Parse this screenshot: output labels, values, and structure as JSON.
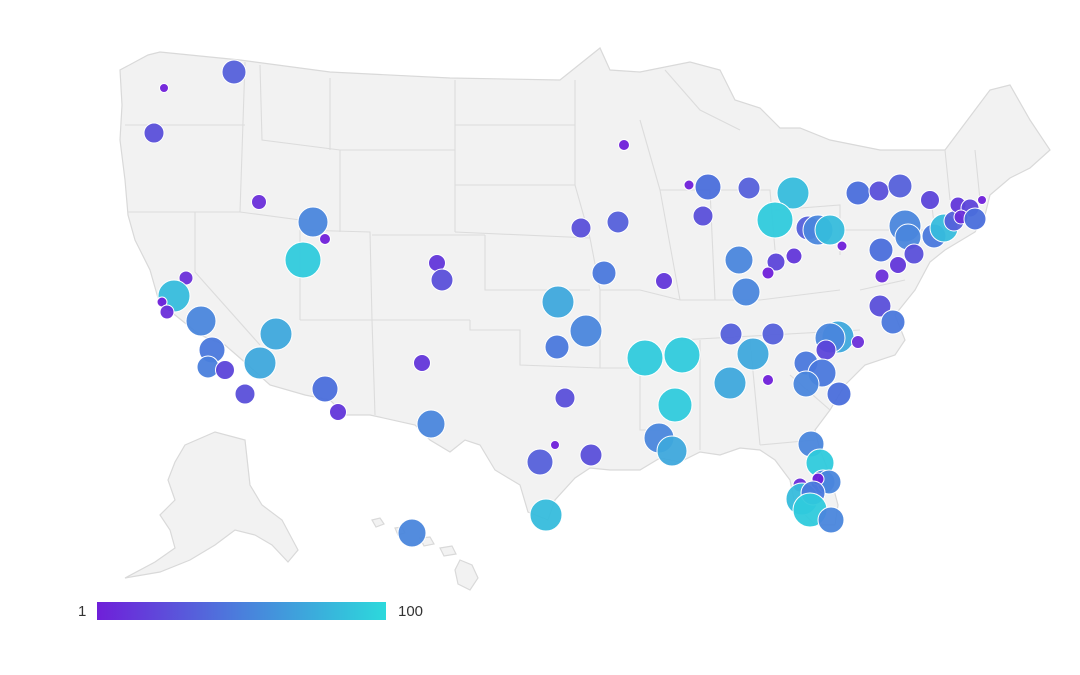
{
  "legend": {
    "min_label": "1",
    "max_label": "100",
    "min_color": "#6f1fd9",
    "mid_color": "#4a7fdc",
    "max_color": "#2cd9dc"
  },
  "map": {
    "land_color": "#f2f2f2",
    "border_color": "#d9d9d9"
  }
}
